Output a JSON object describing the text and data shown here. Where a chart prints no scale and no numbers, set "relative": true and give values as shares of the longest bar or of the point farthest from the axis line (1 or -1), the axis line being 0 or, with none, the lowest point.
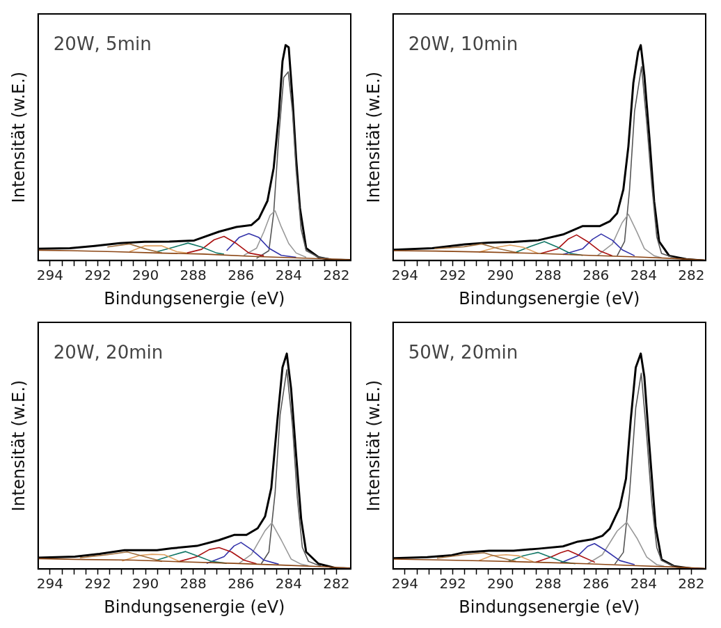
{
  "chart_data": [
    {
      "type": "line",
      "relative": true,
      "marker": "none",
      "xlabel": "Bindungsenergie (eV)",
      "ylabel": "Intensität (w.E.)",
      "annotations": [
        "20W, 5min"
      ],
      "xlim": [
        294.5,
        281.4
      ],
      "xticks": [
        294,
        {
          "value": 293.5,
          "label": null
        },
        {
          "value": 293,
          "label": null
        },
        {
          "value": 292.5,
          "label": null
        },
        292,
        {
          "value": 291.5,
          "label": null
        },
        {
          "value": 291,
          "label": null
        },
        {
          "value": 290.5,
          "label": null
        },
        290,
        {
          "value": 289.5,
          "label": null
        },
        {
          "value": 289,
          "label": null
        },
        {
          "value": 288.5,
          "label": null
        },
        288,
        {
          "value": 287.5,
          "label": null
        },
        {
          "value": 287,
          "label": null
        },
        {
          "value": 286.5,
          "label": null
        },
        286,
        {
          "value": 285.5,
          "label": null
        },
        {
          "value": 285,
          "label": null
        },
        {
          "value": 284.5,
          "label": null
        },
        284,
        {
          "value": 283.5,
          "label": null
        },
        {
          "value": 283,
          "label": null
        },
        {
          "value": 282.5,
          "label": null
        },
        282
      ],
      "series": [
        {
          "color": "#8b4513",
          "x": [
            294.5,
            293.2,
            291.3,
            289.5,
            287.6,
            285.5,
            283.4,
            281.4
          ],
          "values": [
            0.048,
            0.046,
            0.041,
            0.035,
            0.03,
            0.019,
            0.011,
            0.004
          ]
        },
        {
          "color": "#a07040",
          "x": [
            291.6,
            290.67,
            289.94,
            289.31
          ],
          "values": [
            0.063,
            0.077,
            0.052,
            0.035
          ]
        },
        {
          "color": "#e0a060",
          "x": [
            290.67,
            290.04,
            289.31,
            288.69,
            288.27
          ],
          "values": [
            0.041,
            0.068,
            0.068,
            0.041,
            0.035
          ]
        },
        {
          "color": "#117766",
          "x": [
            289.52,
            288.79,
            288.22,
            287.65,
            287.02,
            286.71
          ],
          "values": [
            0.041,
            0.063,
            0.081,
            0.063,
            0.035,
            0.03
          ]
        },
        {
          "color": "#aa1111",
          "x": [
            288.27,
            287.65,
            287.13,
            286.71,
            286.19,
            285.67,
            285.04
          ],
          "values": [
            0.035,
            0.052,
            0.096,
            0.112,
            0.079,
            0.035,
            0.022
          ]
        },
        {
          "color": "#3333aa",
          "x": [
            286.6,
            286.08,
            285.67,
            285.25,
            284.83,
            284.31,
            283.69
          ],
          "values": [
            0.046,
            0.107,
            0.125,
            0.107,
            0.057,
            0.024,
            0.015
          ]
        },
        {
          "color": "#999999",
          "x": [
            285.88,
            285.35,
            285.04,
            284.78,
            284.57,
            284.31,
            284.0,
            283.69,
            283.27
          ],
          "values": [
            0.024,
            0.057,
            0.134,
            0.21,
            0.231,
            0.156,
            0.079,
            0.035,
            0.015
          ]
        },
        {
          "color": "#555555",
          "x": [
            285.35,
            284.83,
            284.63,
            284.42,
            284.21,
            284.02,
            283.84,
            283.69,
            283.48,
            283.27,
            282.75,
            282.23
          ],
          "values": [
            0.01,
            0.046,
            0.22,
            0.57,
            0.85,
            0.876,
            0.69,
            0.42,
            0.145,
            0.046,
            0.015,
            0.007
          ]
        },
        {
          "color": "#000000",
          "x": [
            294.5,
            293.17,
            292.13,
            291.08,
            290.04,
            289.0,
            287.96,
            286.92,
            286.19,
            285.56,
            285.25,
            284.89,
            284.63,
            284.42,
            284.26,
            284.13,
            284.0,
            283.84,
            283.69,
            283.53,
            283.27,
            282.75,
            282.23,
            281.42
          ],
          "values": [
            0.055,
            0.057,
            0.068,
            0.081,
            0.087,
            0.088,
            0.093,
            0.134,
            0.156,
            0.165,
            0.195,
            0.277,
            0.43,
            0.67,
            0.925,
            1.0,
            0.99,
            0.75,
            0.475,
            0.244,
            0.057,
            0.015,
            0.004,
            0.002
          ]
        }
      ]
    },
    {
      "type": "line",
      "relative": true,
      "marker": "none",
      "xlabel": "Bindungsenergie (eV)",
      "ylabel": "Intensität (w.E.)",
      "annotations": [
        "20W, 10min"
      ],
      "xlim": [
        294.5,
        281.4
      ],
      "xticks": [
        294,
        {
          "value": 293.5,
          "label": null
        },
        {
          "value": 293,
          "label": null
        },
        {
          "value": 292.5,
          "label": null
        },
        292,
        {
          "value": 291.5,
          "label": null
        },
        {
          "value": 291,
          "label": null
        },
        {
          "value": 290.5,
          "label": null
        },
        290,
        {
          "value": 289.5,
          "label": null
        },
        {
          "value": 289,
          "label": null
        },
        {
          "value": 288.5,
          "label": null
        },
        288,
        {
          "value": 287.5,
          "label": null
        },
        {
          "value": 287,
          "label": null
        },
        {
          "value": 286.5,
          "label": null
        },
        286,
        {
          "value": 285.5,
          "label": null
        },
        {
          "value": 285,
          "label": null
        },
        {
          "value": 284.5,
          "label": null
        },
        284,
        {
          "value": 283.5,
          "label": null
        },
        {
          "value": 283,
          "label": null
        },
        {
          "value": 282.5,
          "label": null
        },
        282
      ],
      "series": [
        {
          "color": "#8b4513",
          "x": [
            294.5,
            292.7,
            290.5,
            288.4,
            286.3,
            284.3,
            282.7,
            281.4
          ],
          "values": [
            0.046,
            0.044,
            0.039,
            0.033,
            0.024,
            0.017,
            0.009,
            0.002
          ]
        },
        {
          "color": "#a07040",
          "x": [
            292.76,
            291.52,
            290.79,
            290.07,
            289.24
          ],
          "values": [
            0.055,
            0.064,
            0.077,
            0.055,
            0.035
          ]
        },
        {
          "color": "#e0a060",
          "x": [
            290.9,
            290.17,
            289.6,
            289.04,
            288.42
          ],
          "values": [
            0.039,
            0.061,
            0.072,
            0.061,
            0.033
          ]
        },
        {
          "color": "#117766",
          "x": [
            289.35,
            288.73,
            288.16,
            287.59,
            287.07,
            286.55
          ],
          "values": [
            0.039,
            0.066,
            0.088,
            0.061,
            0.033,
            0.024
          ]
        },
        {
          "color": "#aa1111",
          "x": [
            288.31,
            287.59,
            287.17,
            286.81,
            286.35,
            285.83,
            285.31
          ],
          "values": [
            0.033,
            0.055,
            0.099,
            0.119,
            0.088,
            0.044,
            0.022
          ]
        },
        {
          "color": "#3333aa",
          "x": [
            287.38,
            286.55,
            286.14,
            285.78,
            285.31,
            284.9,
            284.38
          ],
          "values": [
            0.028,
            0.055,
            0.099,
            0.123,
            0.094,
            0.05,
            0.022
          ]
        },
        {
          "color": "#999999",
          "x": [
            285.93,
            285.31,
            284.9,
            284.64,
            284.28,
            283.97,
            283.56,
            283.25
          ],
          "values": [
            0.024,
            0.077,
            0.176,
            0.215,
            0.132,
            0.055,
            0.022,
            0.013
          ]
        },
        {
          "color": "#555555",
          "x": [
            285.11,
            284.8,
            284.59,
            284.38,
            284.09,
            283.87,
            283.66,
            283.45,
            283.25,
            282.73
          ],
          "values": [
            0.022,
            0.088,
            0.33,
            0.694,
            0.9,
            0.639,
            0.352,
            0.11,
            0.033,
            0.013
          ]
        },
        {
          "color": "#000000",
          "x": [
            294.47,
            292.86,
            291.5,
            290.48,
            289.45,
            288.42,
            287.38,
            286.55,
            285.83,
            285.42,
            285.11,
            284.85,
            284.64,
            284.43,
            284.23,
            284.12,
            283.97,
            283.76,
            283.56,
            283.35,
            282.93,
            282.21,
            281.47
          ],
          "values": [
            0.05,
            0.057,
            0.075,
            0.083,
            0.086,
            0.094,
            0.121,
            0.16,
            0.16,
            0.182,
            0.22,
            0.33,
            0.529,
            0.826,
            0.969,
            1.0,
            0.859,
            0.573,
            0.275,
            0.088,
            0.022,
            0.006,
            0.0
          ]
        }
      ]
    },
    {
      "type": "line",
      "relative": true,
      "marker": "none",
      "xlabel": "Bindungsenergie (eV)",
      "ylabel": "Intensität (w.E.)",
      "annotations": [
        "20W, 20min"
      ],
      "xlim": [
        294.5,
        281.4
      ],
      "xticks": [
        294,
        {
          "value": 293.5,
          "label": null
        },
        {
          "value": 293,
          "label": null
        },
        {
          "value": 292.5,
          "label": null
        },
        292,
        {
          "value": 291.5,
          "label": null
        },
        {
          "value": 291,
          "label": null
        },
        {
          "value": 290.5,
          "label": null
        },
        290,
        {
          "value": 289.5,
          "label": null
        },
        {
          "value": 289,
          "label": null
        },
        {
          "value": 288.5,
          "label": null
        },
        288,
        {
          "value": 287.5,
          "label": null
        },
        {
          "value": 287,
          "label": null
        },
        {
          "value": 286.5,
          "label": null
        },
        286,
        {
          "value": 285.5,
          "label": null
        },
        {
          "value": 285,
          "label": null
        },
        {
          "value": 284.5,
          "label": null
        },
        284,
        {
          "value": 283.5,
          "label": null
        },
        {
          "value": 283,
          "label": null
        },
        {
          "value": 282.5,
          "label": null
        },
        282
      ],
      "series": [
        {
          "color": "#8b4513",
          "x": [
            294.5,
            292.6,
            290.5,
            288.4,
            286.3,
            284.3,
            282.7,
            281.4
          ],
          "values": [
            0.048,
            0.044,
            0.041,
            0.033,
            0.026,
            0.018,
            0.011,
            0.004
          ]
        },
        {
          "color": "#a07040",
          "x": [
            292.75,
            291.6,
            290.77,
            290.04,
            289.31
          ],
          "values": [
            0.052,
            0.066,
            0.079,
            0.057,
            0.035
          ]
        },
        {
          "color": "#e0a060",
          "x": [
            290.98,
            290.25,
            289.73,
            289.21,
            288.58
          ],
          "values": [
            0.037,
            0.063,
            0.068,
            0.066,
            0.035
          ]
        },
        {
          "color": "#117766",
          "x": [
            289.52,
            288.9,
            288.32,
            287.75,
            287.23,
            286.6
          ],
          "values": [
            0.041,
            0.063,
            0.081,
            0.057,
            0.035,
            0.026
          ]
        },
        {
          "color": "#aa1111",
          "x": [
            288.58,
            287.85,
            287.33,
            286.92,
            286.4,
            285.88,
            285.35
          ],
          "values": [
            0.035,
            0.057,
            0.09,
            0.099,
            0.079,
            0.041,
            0.024
          ]
        },
        {
          "color": "#3333aa",
          "x": [
            287.44,
            286.71,
            286.29,
            286.0,
            285.56,
            285.04,
            284.42
          ],
          "values": [
            0.026,
            0.057,
            0.107,
            0.123,
            0.09,
            0.041,
            0.022
          ]
        },
        {
          "color": "#999999",
          "x": [
            286.08,
            285.56,
            284.99,
            284.71,
            284.31,
            283.9,
            283.48,
            283.17
          ],
          "values": [
            0.026,
            0.068,
            0.178,
            0.214,
            0.134,
            0.046,
            0.022,
            0.015
          ]
        },
        {
          "color": "#555555",
          "x": [
            285.15,
            284.83,
            284.57,
            284.36,
            284.08,
            283.84,
            283.64,
            283.43,
            283.17,
            282.65
          ],
          "values": [
            0.024,
            0.079,
            0.354,
            0.716,
            0.925,
            0.662,
            0.332,
            0.101,
            0.035,
            0.013
          ]
        },
        {
          "color": "#000000",
          "x": [
            294.5,
            292.96,
            291.92,
            290.88,
            289.52,
            288.9,
            287.85,
            286.92,
            286.29,
            285.77,
            285.3,
            284.99,
            284.73,
            284.47,
            284.26,
            284.08,
            283.9,
            283.69,
            283.48,
            283.27,
            282.75,
            282.02,
            281.42
          ],
          "values": [
            0.052,
            0.057,
            0.07,
            0.087,
            0.087,
            0.096,
            0.107,
            0.134,
            0.158,
            0.158,
            0.189,
            0.244,
            0.376,
            0.695,
            0.936,
            1.0,
            0.837,
            0.53,
            0.233,
            0.079,
            0.024,
            0.004,
            0.002
          ]
        }
      ]
    },
    {
      "type": "line",
      "relative": true,
      "marker": "none",
      "xlabel": "Bindungsenergie (eV)",
      "ylabel": "Intensität (w.E.)",
      "annotations": [
        "50W, 20min"
      ],
      "xlim": [
        294.5,
        281.4
      ],
      "xticks": [
        294,
        {
          "value": 293.5,
          "label": null
        },
        {
          "value": 293,
          "label": null
        },
        {
          "value": 292.5,
          "label": null
        },
        292,
        {
          "value": 291.5,
          "label": null
        },
        {
          "value": 291,
          "label": null
        },
        {
          "value": 290.5,
          "label": null
        },
        290,
        {
          "value": 289.5,
          "label": null
        },
        {
          "value": 289,
          "label": null
        },
        {
          "value": 288.5,
          "label": null
        },
        288,
        {
          "value": 287.5,
          "label": null
        },
        {
          "value": 287,
          "label": null
        },
        {
          "value": 286.5,
          "label": null
        },
        286,
        {
          "value": 285.5,
          "label": null
        },
        {
          "value": 285,
          "label": null
        },
        {
          "value": 284.5,
          "label": null
        },
        284,
        {
          "value": 283.5,
          "label": null
        },
        {
          "value": 283,
          "label": null
        },
        {
          "value": 282.5,
          "label": null
        },
        282
      ],
      "series": [
        {
          "color": "#8b4513",
          "x": [
            294.5,
            292.55,
            290.48,
            288.42,
            286.35,
            284.28,
            282.73,
            281.4
          ],
          "values": [
            0.046,
            0.042,
            0.037,
            0.031,
            0.024,
            0.015,
            0.009,
            0.002
          ]
        },
        {
          "color": "#a07040",
          "x": [
            292.66,
            291.52,
            290.69,
            290.07,
            289.35
          ],
          "values": [
            0.05,
            0.066,
            0.075,
            0.055,
            0.035
          ]
        },
        {
          "color": "#e0a060",
          "x": [
            290.9,
            290.38,
            289.76,
            289.24,
            288.62
          ],
          "values": [
            0.039,
            0.061,
            0.066,
            0.061,
            0.033
          ]
        },
        {
          "color": "#117766",
          "x": [
            289.66,
            289.04,
            288.42,
            287.9,
            287.38,
            286.86
          ],
          "values": [
            0.035,
            0.061,
            0.077,
            0.055,
            0.033,
            0.024
          ]
        },
        {
          "color": "#aa1111",
          "x": [
            288.52,
            287.9,
            287.49,
            287.17,
            286.66,
            286.04
          ],
          "values": [
            0.031,
            0.055,
            0.075,
            0.086,
            0.061,
            0.031
          ]
        },
        {
          "color": "#3333aa",
          "x": [
            287.49,
            286.76,
            286.35,
            286.06,
            285.62,
            285.0,
            284.38
          ],
          "values": [
            0.028,
            0.061,
            0.105,
            0.118,
            0.088,
            0.039,
            0.02
          ]
        },
        {
          "color": "#999999",
          "x": [
            286.35,
            285.73,
            285.11,
            284.71,
            284.28,
            283.87,
            283.45,
            283.14
          ],
          "values": [
            0.024,
            0.066,
            0.176,
            0.217,
            0.143,
            0.055,
            0.02,
            0.013
          ]
        },
        {
          "color": "#555555",
          "x": [
            285.21,
            284.85,
            284.59,
            284.33,
            284.1,
            283.87,
            283.66,
            283.45,
            283.25,
            282.73
          ],
          "values": [
            0.022,
            0.077,
            0.352,
            0.749,
            0.909,
            0.617,
            0.308,
            0.099,
            0.039,
            0.013
          ]
        },
        {
          "color": "#000000",
          "x": [
            294.47,
            293.07,
            292.04,
            291.52,
            290.48,
            289.45,
            288.42,
            287.38,
            286.76,
            286.14,
            285.73,
            285.42,
            285.0,
            284.74,
            284.54,
            284.33,
            284.12,
            283.97,
            283.76,
            283.5,
            283.25,
            282.73,
            282.0,
            281.47
          ],
          "values": [
            0.05,
            0.055,
            0.064,
            0.077,
            0.085,
            0.085,
            0.094,
            0.105,
            0.127,
            0.138,
            0.154,
            0.187,
            0.286,
            0.419,
            0.694,
            0.936,
            1.0,
            0.892,
            0.573,
            0.198,
            0.044,
            0.013,
            0.002,
            0.0
          ]
        }
      ]
    }
  ]
}
